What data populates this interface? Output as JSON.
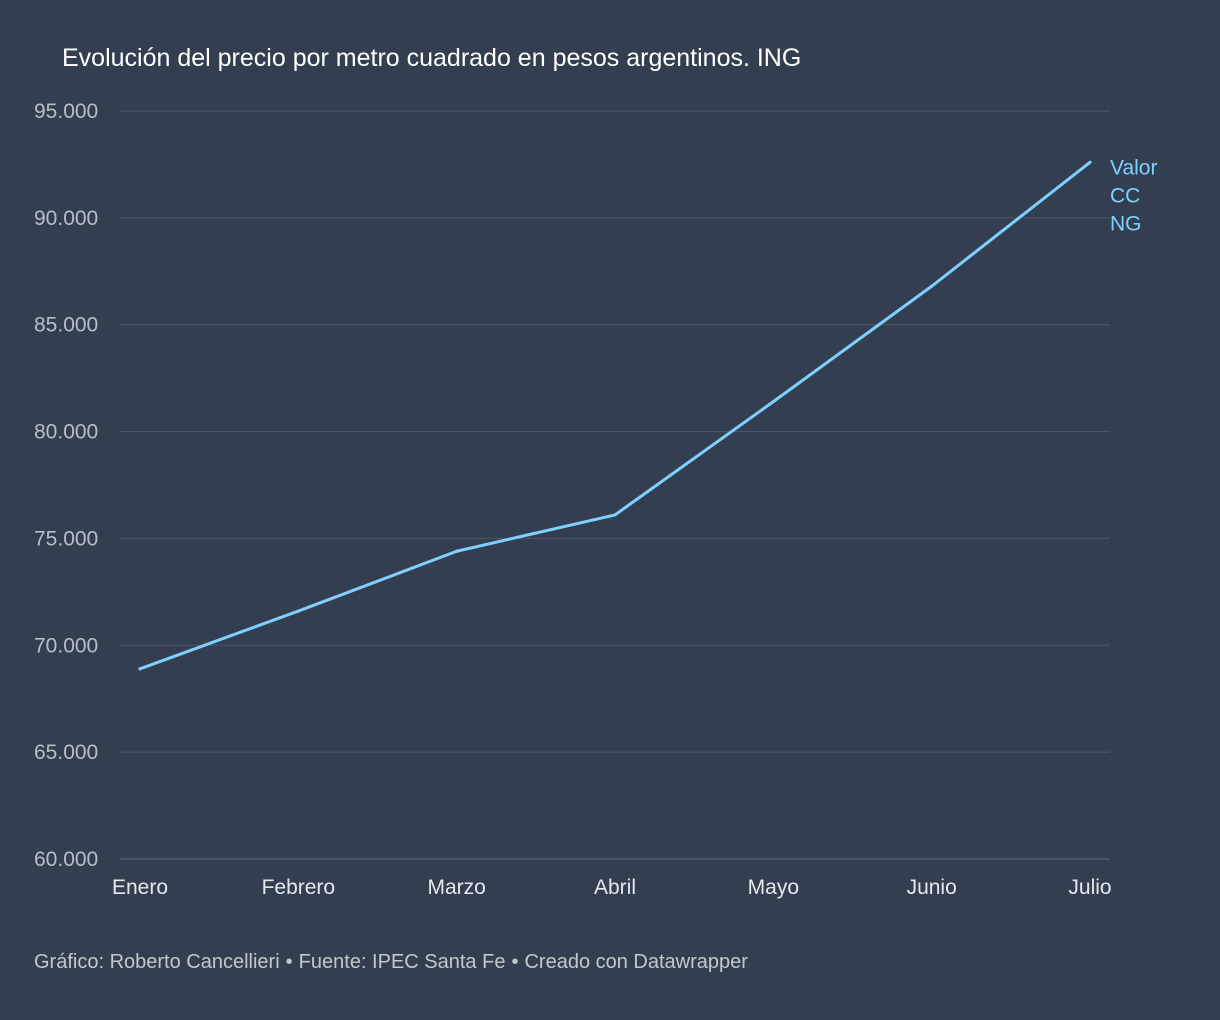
{
  "chart_data": {
    "type": "line",
    "title": "Evolución del precio por metro cuadrado en pesos argentinos. ING",
    "xlabel": "",
    "ylabel": "",
    "categories": [
      "Enero",
      "Febrero",
      "Marzo",
      "Abril",
      "Mayo",
      "Junio",
      "Julio"
    ],
    "series": [
      {
        "name": "Valor CC NG",
        "label_lines": [
          "Valor",
          "CC",
          "NG"
        ],
        "values": [
          68900,
          71600,
          74400,
          76100,
          81400,
          86800,
          92600
        ],
        "color": "#7fd0ff"
      }
    ],
    "yticks": [
      60000,
      65000,
      70000,
      75000,
      80000,
      85000,
      90000,
      95000
    ],
    "ytick_labels": [
      "60.000",
      "65.000",
      "70.000",
      "75.000",
      "80.000",
      "85.000",
      "90.000",
      "95.000"
    ],
    "ylim": [
      60000,
      95000
    ],
    "grid": true,
    "legend": "direct label at line end"
  },
  "footer": {
    "credit": "Gráfico: Roberto Cancellieri",
    "separator": "•",
    "source": "Fuente: IPEC Santa Fe",
    "tool": "Creado con Datawrapper"
  },
  "colors": {
    "background": "#333f50",
    "gridline": "#4d5868",
    "axis_text": "#b9bec6",
    "category_text": "#e6e8eb",
    "title_text": "#ffffff",
    "line": "#7fd0ff"
  }
}
